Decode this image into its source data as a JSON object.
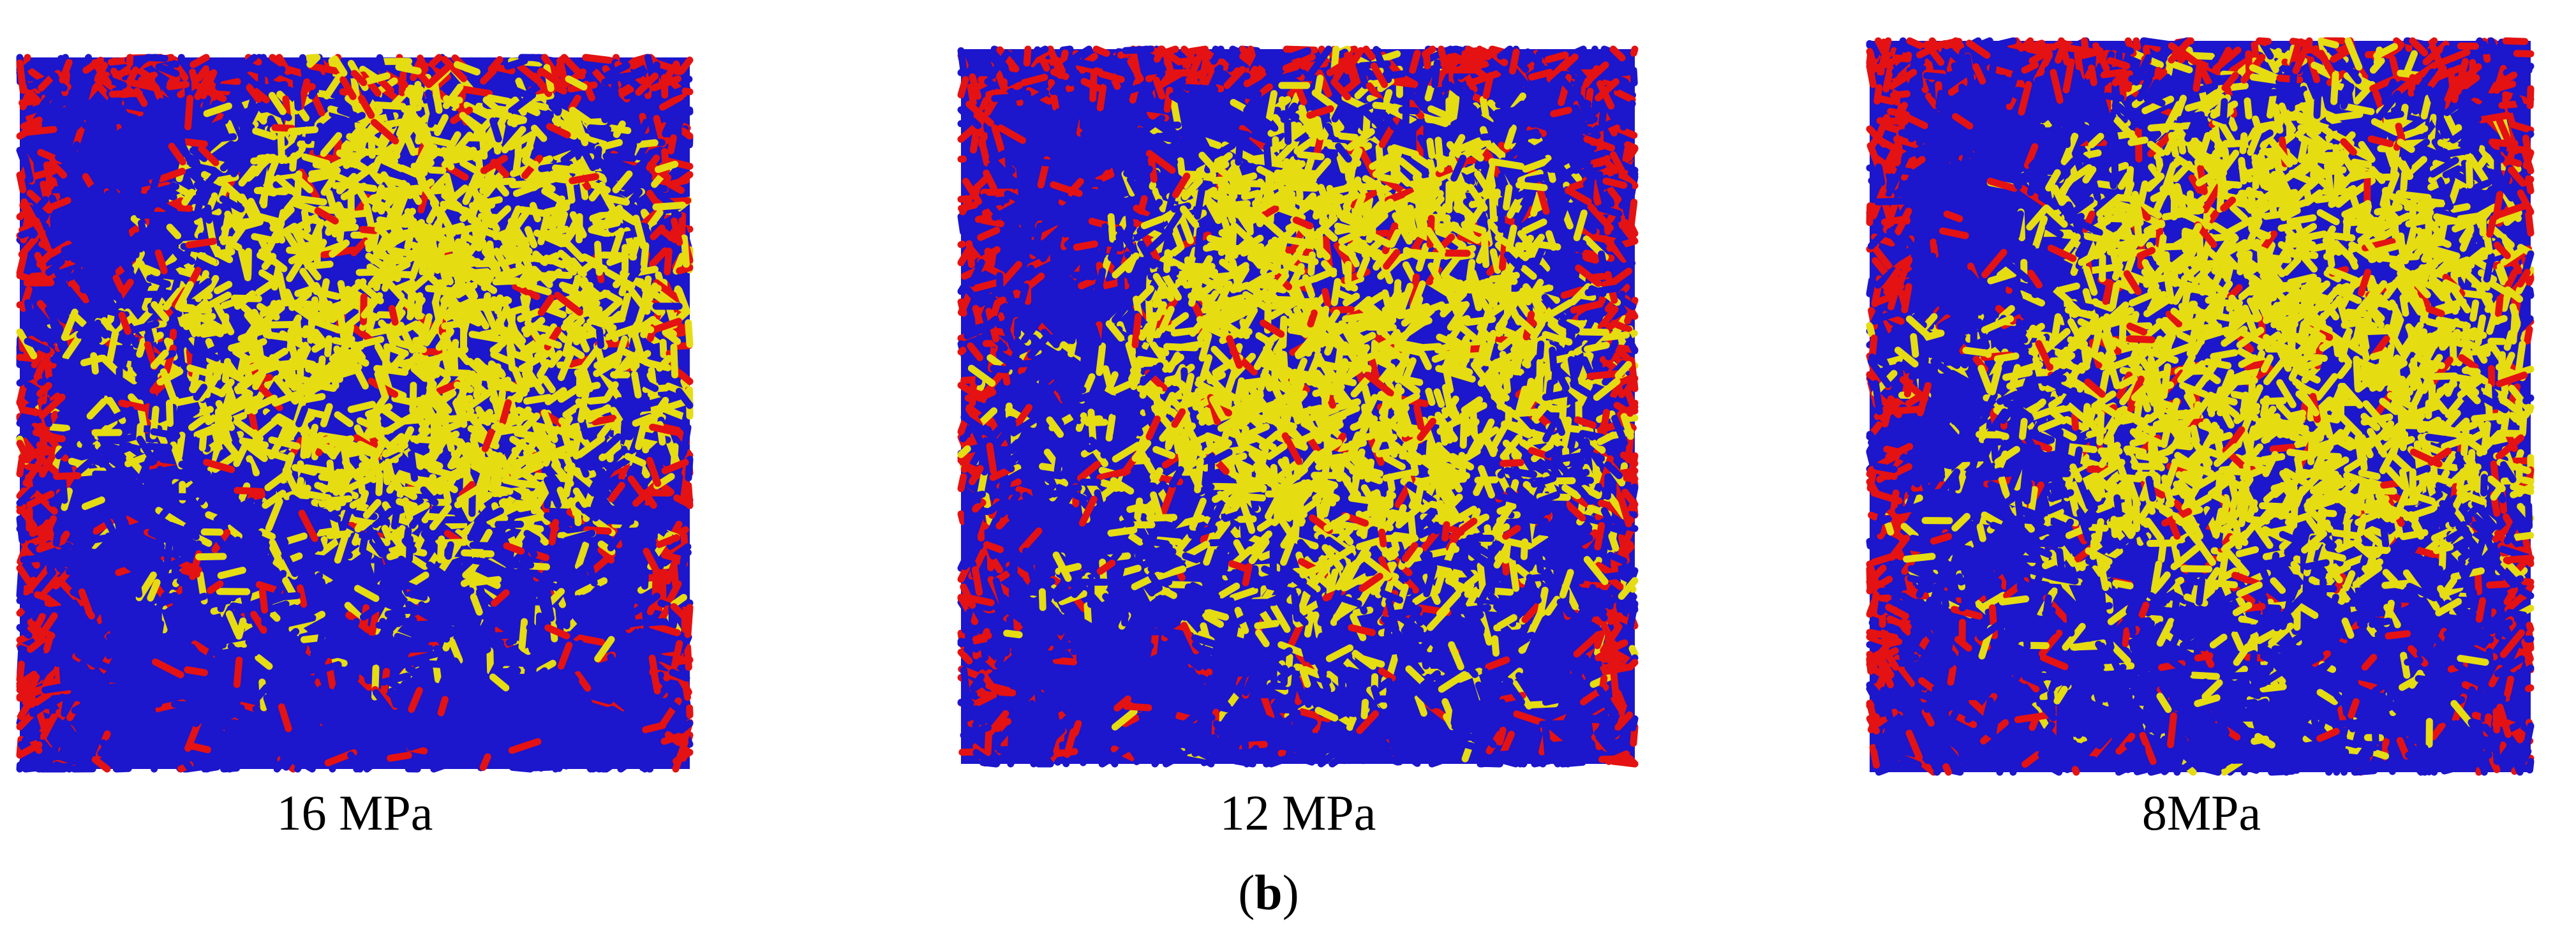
{
  "panels": [
    {
      "label": "16 MPa"
    },
    {
      "label": "12 MPa"
    },
    {
      "label": "8MPa"
    }
  ],
  "caption": {
    "open": "(",
    "letter": "b",
    "close": ")"
  }
}
